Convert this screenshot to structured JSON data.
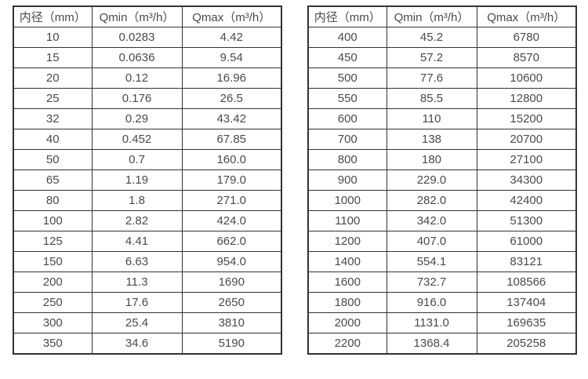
{
  "colors": {
    "background": "#ffffff",
    "table_border": "#333333",
    "text": "#4a4a4a"
  },
  "chart_data": [
    {
      "type": "table",
      "columns": [
        "内径（mm）",
        "Qmin（m³/h）",
        "Qmax（m³/h）"
      ],
      "rows": [
        [
          "10",
          "0.0283",
          "4.42"
        ],
        [
          "15",
          "0.0636",
          "9.54"
        ],
        [
          "20",
          "0.12",
          "16.96"
        ],
        [
          "25",
          "0.176",
          "26.5"
        ],
        [
          "32",
          "0.29",
          "43.42"
        ],
        [
          "40",
          "0.452",
          "67.85"
        ],
        [
          "50",
          "0.7",
          "160.0"
        ],
        [
          "65",
          "1.19",
          "179.0"
        ],
        [
          "80",
          "1.8",
          "271.0"
        ],
        [
          "100",
          "2.82",
          "424.0"
        ],
        [
          "125",
          "4.41",
          "662.0"
        ],
        [
          "150",
          "6.63",
          "954.0"
        ],
        [
          "200",
          "11.3",
          "1690"
        ],
        [
          "250",
          "17.6",
          "2650"
        ],
        [
          "300",
          "25.4",
          "3810"
        ],
        [
          "350",
          "34.6",
          "5190"
        ]
      ]
    },
    {
      "type": "table",
      "columns": [
        "内径（mm）",
        "Qmin（m³/h）",
        "Qmax（m³/h）"
      ],
      "rows": [
        [
          "400",
          "45.2",
          "6780"
        ],
        [
          "450",
          "57.2",
          "8570"
        ],
        [
          "500",
          "77.6",
          "10600"
        ],
        [
          "550",
          "85.5",
          "12800"
        ],
        [
          "600",
          "110",
          "15200"
        ],
        [
          "700",
          "138",
          "20700"
        ],
        [
          "800",
          "180",
          "27100"
        ],
        [
          "900",
          "229.0",
          "34300"
        ],
        [
          "1000",
          "282.0",
          "42400"
        ],
        [
          "1100",
          "342.0",
          "51300"
        ],
        [
          "1200",
          "407.0",
          "61000"
        ],
        [
          "1400",
          "554.1",
          "83121"
        ],
        [
          "1600",
          "732.7",
          "108566"
        ],
        [
          "1800",
          "916.0",
          "137404"
        ],
        [
          "2000",
          "1131.0",
          "169635"
        ],
        [
          "2200",
          "1368.4",
          "205258"
        ]
      ]
    }
  ]
}
